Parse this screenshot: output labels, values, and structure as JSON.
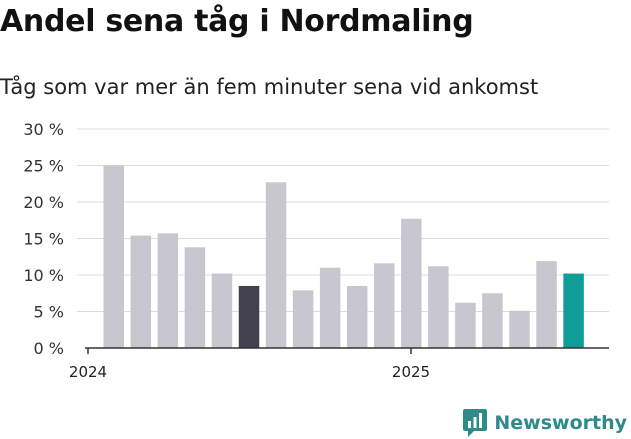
{
  "header": {
    "title": "Andel sena tåg i Nordmaling",
    "subtitle": "Tåg som var mer än fem minuter sena vid ankomst"
  },
  "brand": {
    "name": "Newsworthy",
    "icon": "newsworthy-logo-icon",
    "color": "#2e8b89"
  },
  "colors": {
    "bar_default": "#c8c7d0",
    "bar_highlight_dark": "#43414e",
    "bar_highlight_teal": "#0f9e95",
    "grid": "#dcdcdc",
    "axis": "#333333"
  },
  "chart_data": {
    "type": "bar",
    "title": "Andel sena tåg i Nordmaling",
    "subtitle": "Tåg som var mer än fem minuter sena vid ankomst",
    "xlabel": "",
    "ylabel": "",
    "ylim": [
      0,
      30
    ],
    "yticks": [
      "0 %",
      "5 %",
      "10 %",
      "15 %",
      "20 %",
      "25 %",
      "30 %"
    ],
    "ytick_values": [
      0,
      5,
      10,
      15,
      20,
      25,
      30
    ],
    "xtick_labels": [
      "2024",
      "2025"
    ],
    "grid": true,
    "values": [
      25.0,
      15.4,
      15.7,
      13.8,
      10.2,
      8.5,
      22.7,
      7.9,
      11.0,
      8.5,
      11.6,
      17.7,
      11.2,
      6.2,
      7.5,
      5.1,
      11.9,
      10.2
    ],
    "highlight": {
      "5": "dark",
      "17": "teal"
    }
  }
}
